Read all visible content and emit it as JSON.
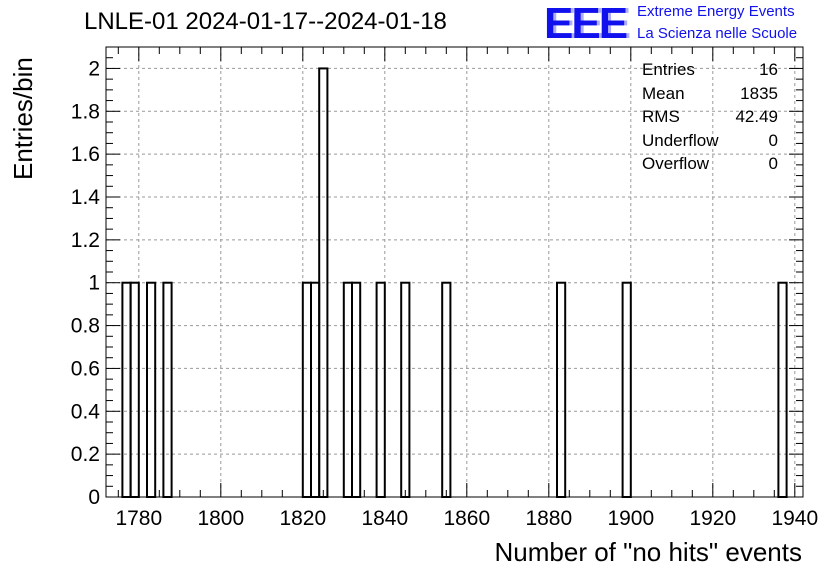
{
  "chart_data": {
    "type": "bar",
    "title": "LNLE-01 2024-01-17--2024-01-18",
    "xlabel": "Number of \"no hits\" events",
    "ylabel": "Entries/bin",
    "xlim": [
      1772,
      1942
    ],
    "ylim": [
      0,
      2.1
    ],
    "bin_width": 2,
    "x_ticks": [
      "1780",
      "1800",
      "1820",
      "1840",
      "1860",
      "1880",
      "1900",
      "1920",
      "1940"
    ],
    "y_ticks": [
      "0",
      "0.2",
      "0.4",
      "0.6",
      "0.8",
      "1",
      "1.2",
      "1.4",
      "1.6",
      "1.8",
      "2"
    ],
    "grid": true,
    "bins": [
      {
        "x": 1777,
        "y": 1
      },
      {
        "x": 1779,
        "y": 1
      },
      {
        "x": 1783,
        "y": 1
      },
      {
        "x": 1787,
        "y": 1
      },
      {
        "x": 1821,
        "y": 1
      },
      {
        "x": 1823,
        "y": 1
      },
      {
        "x": 1825,
        "y": 2
      },
      {
        "x": 1831,
        "y": 1
      },
      {
        "x": 1833,
        "y": 1
      },
      {
        "x": 1839,
        "y": 1
      },
      {
        "x": 1845,
        "y": 1
      },
      {
        "x": 1855,
        "y": 1
      },
      {
        "x": 1883,
        "y": 1
      },
      {
        "x": 1899,
        "y": 1
      },
      {
        "x": 1937,
        "y": 1
      }
    ],
    "stats": [
      {
        "label": "Entries",
        "value": "16"
      },
      {
        "label": "Mean",
        "value": "1835"
      },
      {
        "label": "RMS",
        "value": "42.49"
      },
      {
        "label": "Underflow",
        "value": "0"
      },
      {
        "label": "Overflow",
        "value": "0"
      }
    ]
  },
  "logo": {
    "text": "EEE",
    "line1": "Extreme Energy Events",
    "line2": "La Scienza nelle Scuole",
    "color": "#1111ee"
  }
}
